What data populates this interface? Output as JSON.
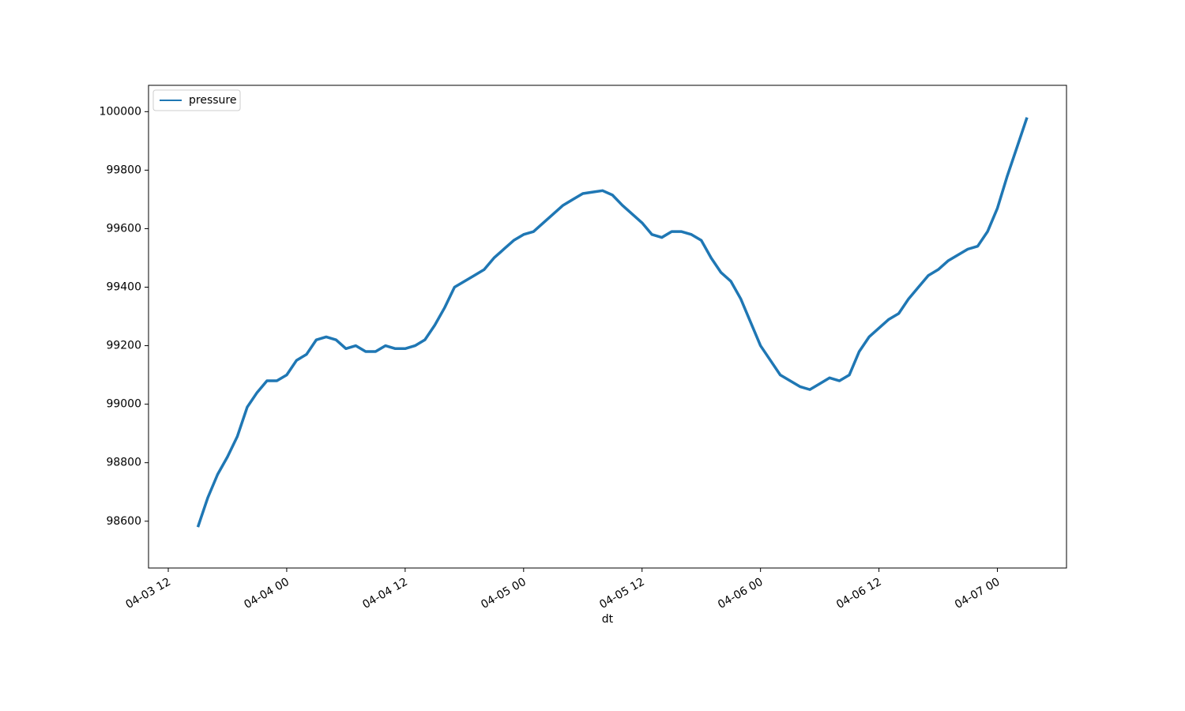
{
  "chart_data": {
    "type": "line",
    "xlabel": "dt",
    "x": [
      "04-03 15",
      "04-03 16",
      "04-03 17",
      "04-03 18",
      "04-03 19",
      "04-03 20",
      "04-03 21",
      "04-03 22",
      "04-03 23",
      "04-04 00",
      "04-04 01",
      "04-04 02",
      "04-04 03",
      "04-04 04",
      "04-04 05",
      "04-04 06",
      "04-04 07",
      "04-04 08",
      "04-04 09",
      "04-04 10",
      "04-04 11",
      "04-04 12",
      "04-04 13",
      "04-04 14",
      "04-04 15",
      "04-04 16",
      "04-04 17",
      "04-04 18",
      "04-04 19",
      "04-04 20",
      "04-04 21",
      "04-04 22",
      "04-04 23",
      "04-05 00",
      "04-05 01",
      "04-05 02",
      "04-05 03",
      "04-05 04",
      "04-05 05",
      "04-05 06",
      "04-05 07",
      "04-05 08",
      "04-05 09",
      "04-05 10",
      "04-05 11",
      "04-05 12",
      "04-05 13",
      "04-05 14",
      "04-05 15",
      "04-05 16",
      "04-05 17",
      "04-05 18",
      "04-05 19",
      "04-05 20",
      "04-05 21",
      "04-05 22",
      "04-05 23",
      "04-06 00",
      "04-06 01",
      "04-06 02",
      "04-06 03",
      "04-06 04",
      "04-06 05",
      "04-06 06",
      "04-06 07",
      "04-06 08",
      "04-06 09",
      "04-06 10",
      "04-06 11",
      "04-06 12",
      "04-06 13",
      "04-06 14",
      "04-06 15",
      "04-06 16",
      "04-06 17",
      "04-06 18",
      "04-06 19",
      "04-06 20",
      "04-06 21",
      "04-06 22",
      "04-06 23",
      "04-07 00",
      "04-07 01",
      "04-07 02",
      "04-07 03"
    ],
    "series": [
      {
        "name": "pressure",
        "color": "#1f77b4",
        "values": [
          98580,
          98680,
          98760,
          98820,
          98890,
          98990,
          99040,
          99080,
          99080,
          99100,
          99150,
          99170,
          99220,
          99230,
          99220,
          99190,
          99200,
          99180,
          99180,
          99200,
          99190,
          99190,
          99200,
          99220,
          99270,
          99330,
          99400,
          99420,
          99440,
          99460,
          99500,
          99530,
          99560,
          99580,
          99590,
          99620,
          99650,
          99680,
          99700,
          99720,
          99725,
          99730,
          99715,
          99680,
          99650,
          99620,
          99580,
          99570,
          99590,
          99590,
          99580,
          99560,
          99500,
          99450,
          99420,
          99360,
          99280,
          99200,
          99150,
          99100,
          99080,
          99060,
          99050,
          99070,
          99090,
          99080,
          99100,
          99180,
          99230,
          99260,
          99290,
          99310,
          99360,
          99400,
          99440,
          99460,
          99490,
          99510,
          99530,
          99540,
          99590,
          99670,
          99780,
          99880,
          99980
        ]
      }
    ],
    "xlim": [
      "04-03 10",
      "04-07 07"
    ],
    "xticks": [
      "04-03 12",
      "04-04 00",
      "04-04 12",
      "04-05 00",
      "04-05 12",
      "04-06 00",
      "04-06 12",
      "04-07 00"
    ],
    "ylim": [
      98440,
      100090
    ],
    "yticks": [
      98600,
      98800,
      99000,
      99200,
      99400,
      99600,
      99800,
      100000
    ],
    "legend": "upper left",
    "grid": false
  }
}
